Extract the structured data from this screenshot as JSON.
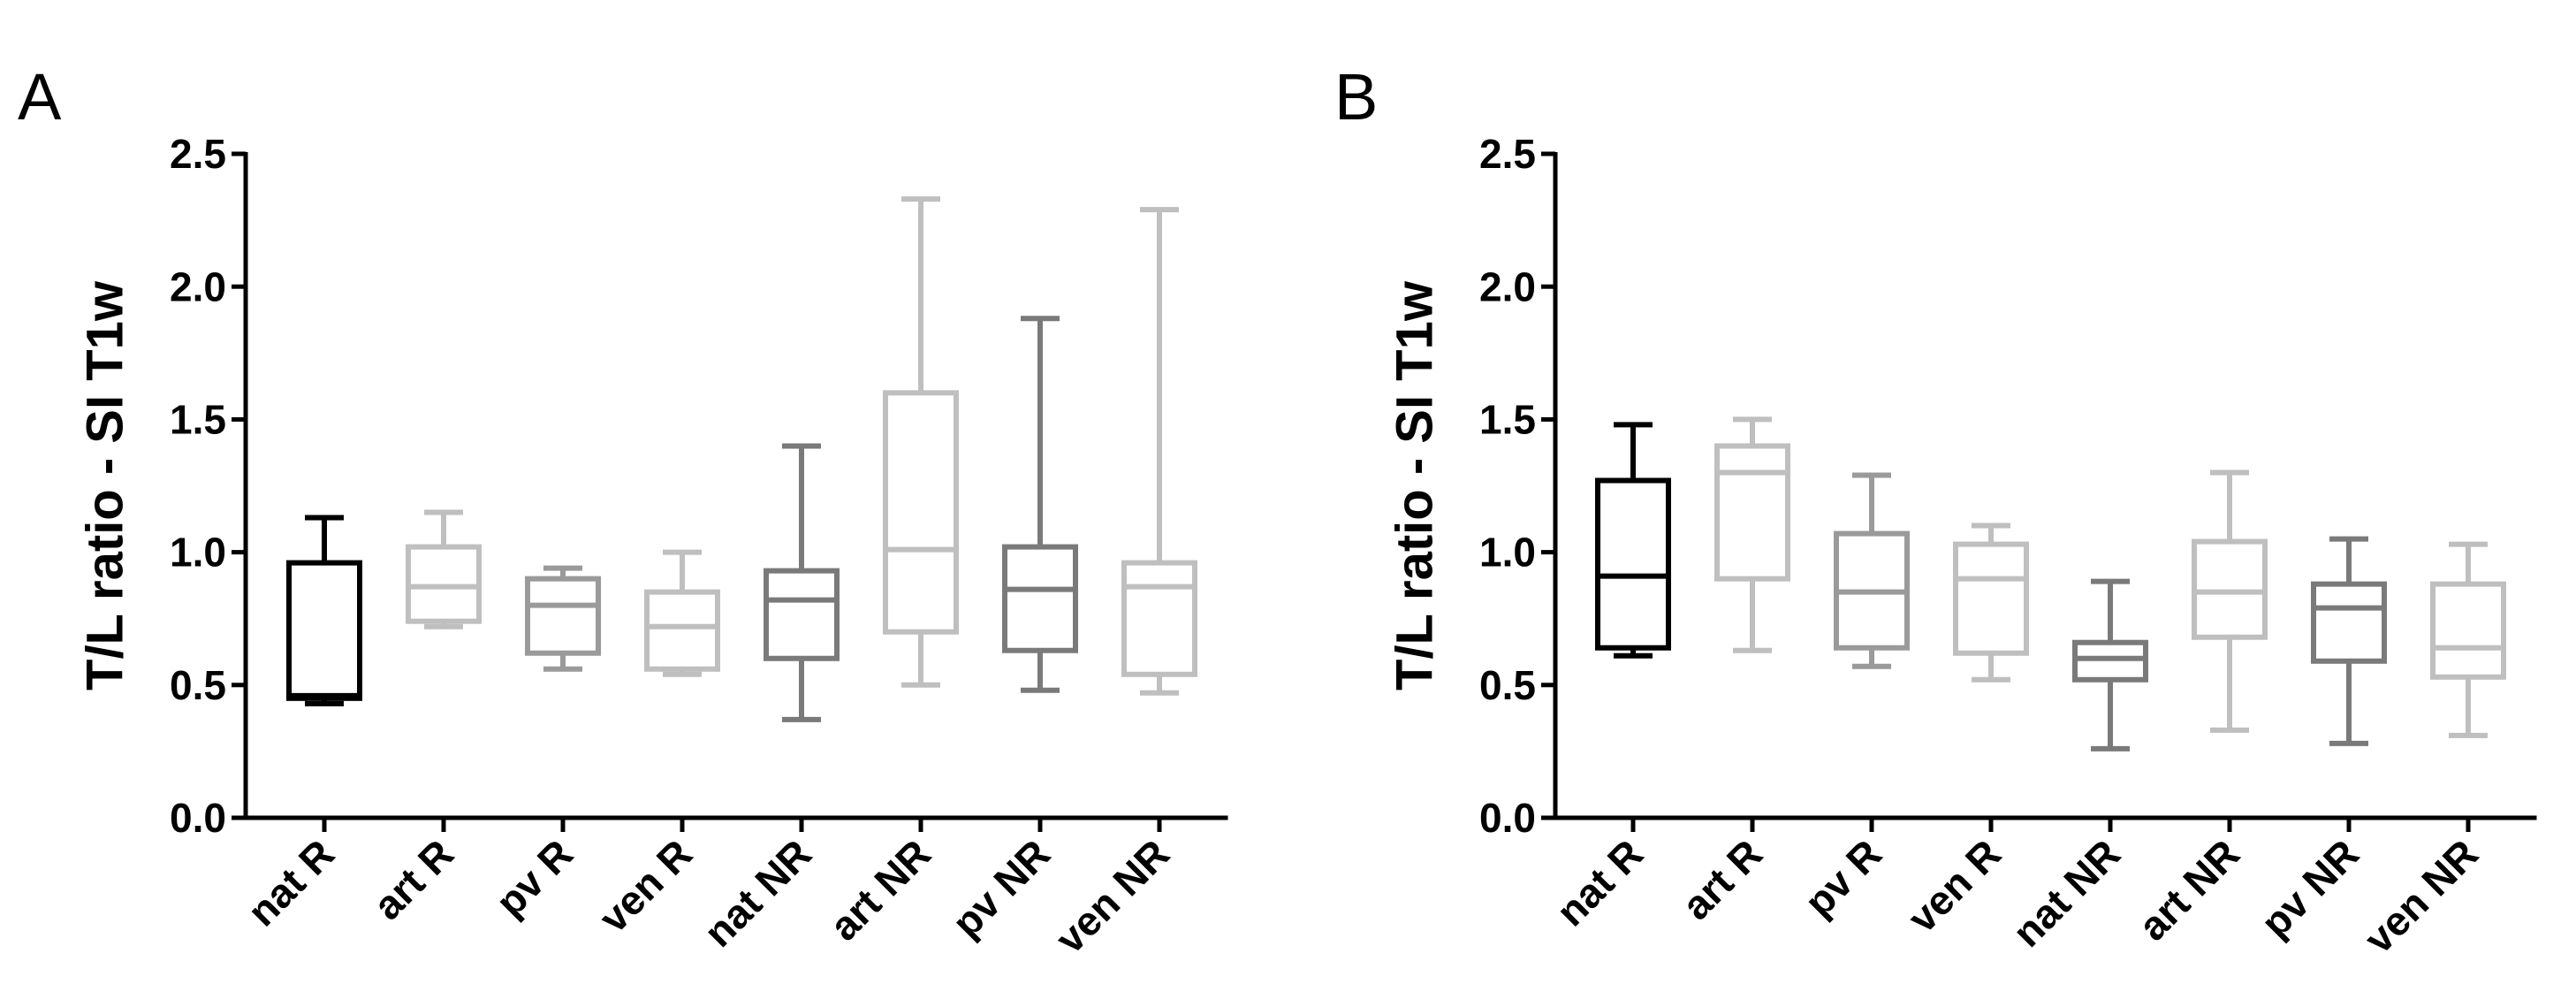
{
  "chart_data": [
    {
      "type": "boxplot",
      "panel": "A",
      "title": "",
      "xlabel": "",
      "ylabel": "T/L ratio - SI T1w",
      "ylim": [
        0,
        2.5
      ],
      "yticks": [
        "0.0",
        "0.5",
        "1.0",
        "1.5",
        "2.0",
        "2.5"
      ],
      "categories": [
        "nat R",
        "art R",
        "pv R",
        "ven R",
        "nat NR",
        "art NR",
        "pv NR",
        "ven NR"
      ],
      "colors": [
        "#000000",
        "#bfbfbf",
        "#9a9a9a",
        "#bfbfbf",
        "#7a7a7a",
        "#bfbfbf",
        "#7a7a7a",
        "#bfbfbf"
      ],
      "boxes": [
        {
          "min": 0.43,
          "q1": 0.45,
          "median": 0.46,
          "q3": 0.96,
          "max": 1.13
        },
        {
          "min": 0.72,
          "q1": 0.74,
          "median": 0.87,
          "q3": 1.02,
          "max": 1.15
        },
        {
          "min": 0.56,
          "q1": 0.62,
          "median": 0.8,
          "q3": 0.9,
          "max": 0.94
        },
        {
          "min": 0.54,
          "q1": 0.56,
          "median": 0.72,
          "q3": 0.85,
          "max": 1.0
        },
        {
          "min": 0.37,
          "q1": 0.6,
          "median": 0.82,
          "q3": 0.93,
          "max": 1.4
        },
        {
          "min": 0.5,
          "q1": 0.7,
          "median": 1.01,
          "q3": 1.6,
          "max": 2.33
        },
        {
          "min": 0.48,
          "q1": 0.63,
          "median": 0.86,
          "q3": 1.02,
          "max": 1.88
        },
        {
          "min": 0.47,
          "q1": 0.54,
          "median": 0.87,
          "q3": 0.96,
          "max": 2.29
        }
      ]
    },
    {
      "type": "boxplot",
      "panel": "B",
      "title": "",
      "xlabel": "",
      "ylabel": "T/L ratio - SI T1w",
      "ylim": [
        0,
        2.5
      ],
      "yticks": [
        "0.0",
        "0.5",
        "1.0",
        "1.5",
        "2.0",
        "2.5"
      ],
      "categories": [
        "nat R",
        "art R",
        "pv R",
        "ven R",
        "nat NR",
        "art NR",
        "pv NR",
        "ven NR"
      ],
      "colors": [
        "#000000",
        "#bfbfbf",
        "#9a9a9a",
        "#bfbfbf",
        "#7a7a7a",
        "#bfbfbf",
        "#7a7a7a",
        "#bfbfbf"
      ],
      "boxes": [
        {
          "min": 0.61,
          "q1": 0.64,
          "median": 0.91,
          "q3": 1.27,
          "max": 1.48
        },
        {
          "min": 0.63,
          "q1": 0.9,
          "median": 1.3,
          "q3": 1.4,
          "max": 1.5
        },
        {
          "min": 0.57,
          "q1": 0.64,
          "median": 0.85,
          "q3": 1.07,
          "max": 1.29
        },
        {
          "min": 0.52,
          "q1": 0.62,
          "median": 0.9,
          "q3": 1.03,
          "max": 1.1
        },
        {
          "min": 0.26,
          "q1": 0.52,
          "median": 0.6,
          "q3": 0.66,
          "max": 0.89
        },
        {
          "min": 0.33,
          "q1": 0.68,
          "median": 0.85,
          "q3": 1.04,
          "max": 1.3
        },
        {
          "min": 0.28,
          "q1": 0.59,
          "median": 0.79,
          "q3": 0.88,
          "max": 1.05
        },
        {
          "min": 0.31,
          "q1": 0.53,
          "median": 0.64,
          "q3": 0.88,
          "max": 1.03
        }
      ]
    }
  ]
}
